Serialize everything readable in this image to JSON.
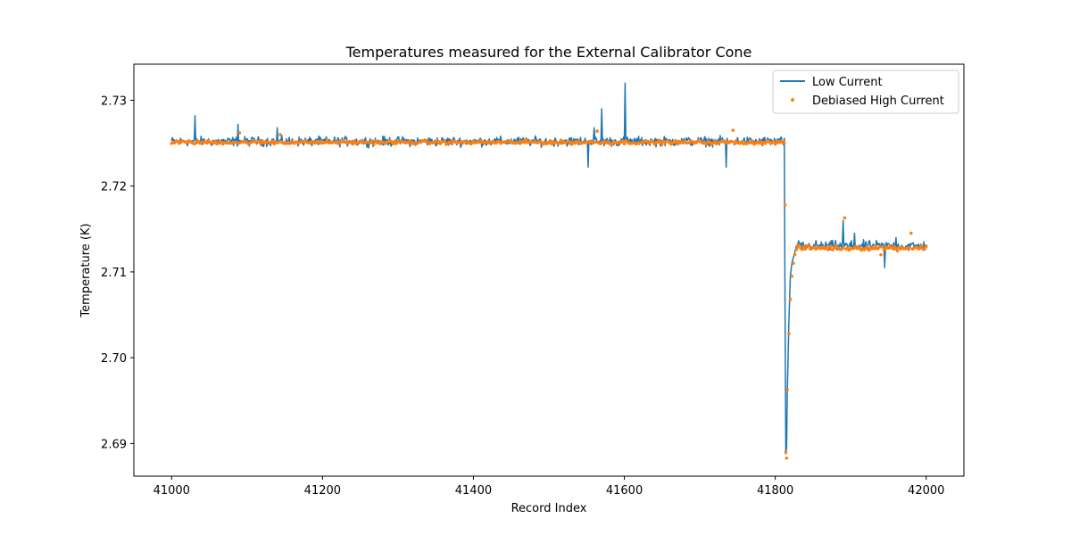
{
  "chart_data": {
    "type": "line",
    "title": "Temperatures measured for the External Calibrator Cone",
    "xlabel": "Record Index",
    "ylabel": "Temperature (K)",
    "xlim": [
      40950,
      42050
    ],
    "ylim": [
      2.6862,
      2.7342
    ],
    "xticks": [
      41000,
      41200,
      41400,
      41600,
      41800,
      42000
    ],
    "yticks": [
      2.69,
      2.7,
      2.71,
      2.72,
      2.73
    ],
    "ytick_labels": [
      "2.69",
      "2.70",
      "2.71",
      "2.72",
      "2.73"
    ],
    "legend": {
      "position": "top-right"
    },
    "series": [
      {
        "name": "Low Current",
        "style": "line",
        "color": "#1f77b4",
        "x_start": 41000,
        "x_end": 42000,
        "segments": [
          {
            "from": 41000,
            "to": 41812,
            "baseline": 2.7252,
            "noise": 0.0008
          },
          {
            "from": 41812,
            "to": 41815,
            "points": [
              [
                41812,
                2.7255
              ],
              [
                41813,
                2.7052
              ],
              [
                41814,
                2.6888
              ],
              [
                41815,
                2.6895
              ]
            ]
          },
          {
            "from": 41815,
            "to": 41830,
            "points": [
              [
                41816,
                2.696
              ],
              [
                41818,
                2.704
              ],
              [
                41820,
                2.7095
              ],
              [
                41822,
                2.711
              ],
              [
                41825,
                2.712
              ],
              [
                41828,
                2.713
              ],
              [
                41830,
                2.7132
              ]
            ]
          },
          {
            "from": 41830,
            "to": 42000,
            "baseline": 2.713,
            "noise": 0.0009
          }
        ],
        "spikes": [
          [
            41031,
            2.7282
          ],
          [
            41088,
            2.7272
          ],
          [
            41140,
            2.7268
          ],
          [
            41560,
            2.7268
          ],
          [
            41570,
            2.729
          ],
          [
            41601,
            2.732
          ],
          [
            41552,
            2.7222
          ],
          [
            41735,
            2.7222
          ],
          [
            41890,
            2.716
          ],
          [
            41905,
            2.7145
          ],
          [
            41945,
            2.7105
          ],
          [
            41960,
            2.714
          ]
        ]
      },
      {
        "name": "Debiased High Current",
        "style": "scatter",
        "color": "#ff7f0e",
        "x_start": 41000,
        "x_end": 42000,
        "segments": [
          {
            "from": 41000,
            "to": 41812,
            "baseline": 2.7251,
            "noise": 0.0003
          },
          {
            "from": 41812,
            "to": 41830,
            "points": [
              [
                41813,
                2.7178
              ],
              [
                41814,
                2.689
              ],
              [
                41815,
                2.6883
              ],
              [
                41816,
                2.6963
              ],
              [
                41818,
                2.7028
              ],
              [
                41820,
                2.7068
              ],
              [
                41822,
                2.7095
              ],
              [
                41824,
                2.711
              ],
              [
                41826,
                2.712
              ],
              [
                41828,
                2.7126
              ],
              [
                41830,
                2.7129
              ]
            ]
          },
          {
            "from": 41830,
            "to": 42000,
            "baseline": 2.7128,
            "noise": 0.0004
          }
        ],
        "spikes": [
          [
            41090,
            2.7262
          ],
          [
            41145,
            2.726
          ],
          [
            41565,
            2.7264
          ],
          [
            41745,
            2.7265
          ],
          [
            41893,
            2.7163
          ],
          [
            41940,
            2.712
          ],
          [
            41980,
            2.7145
          ]
        ]
      }
    ]
  }
}
